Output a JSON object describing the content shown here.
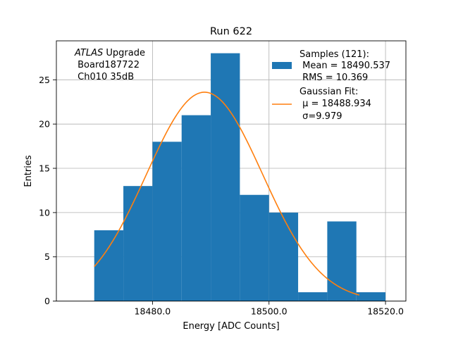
{
  "chart_data": {
    "type": "bar",
    "title": "Run 622",
    "xlabel": "Energy [ADC Counts]",
    "ylabel": "Entries",
    "xlim": [
      18463.5,
      18523.5
    ],
    "ylim": [
      0,
      29.4
    ],
    "grid": true,
    "x_ticks": [
      18480.0,
      18500.0,
      18520.0
    ],
    "x_tick_labels": [
      "18480.0",
      "18500.0",
      "18520.0"
    ],
    "y_ticks": [
      0,
      5,
      10,
      15,
      20,
      25
    ],
    "y_tick_labels": [
      "0",
      "5",
      "10",
      "15",
      "20",
      "25"
    ],
    "histogram": {
      "name": "Samples (121):",
      "color": "#1f77b4",
      "bin_edges": [
        18470,
        18475,
        18480,
        18485,
        18490,
        18495,
        18500,
        18505,
        18510,
        18515,
        18520
      ],
      "counts": [
        8,
        13,
        18,
        21,
        28,
        12,
        10,
        1,
        9,
        1
      ]
    },
    "fit": {
      "name": "Gaussian Fit:",
      "color": "#ff7f0e",
      "x_range": [
        18470,
        18515.5
      ],
      "mu": 18488.934,
      "sigma": 9.979,
      "peak": 23.6
    },
    "legend": {
      "position": "top-right",
      "entries": [
        {
          "lines": [
            "Samples (121):",
            " Mean = 18490.537",
            " RMS = 10.369"
          ]
        },
        {
          "lines": [
            "Gaussian Fit:",
            " μ = 18488.934",
            " σ=9.979"
          ]
        }
      ]
    },
    "annotation": {
      "italic": "ATLAS",
      "rest": " Upgrade",
      "lines": [
        " Board187722",
        " Ch010 35dB"
      ]
    }
  }
}
